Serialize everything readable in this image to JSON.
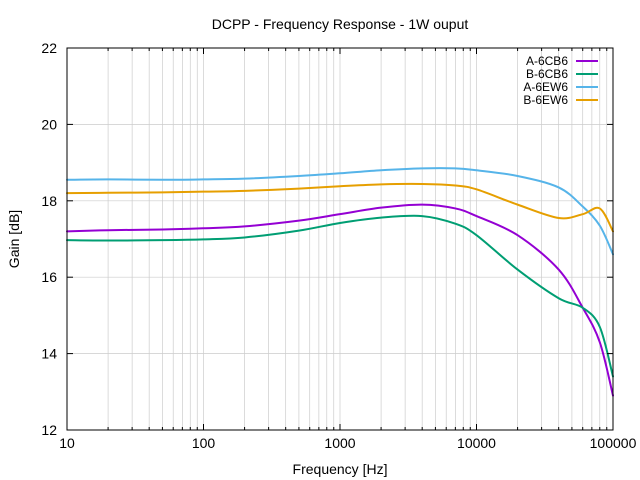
{
  "chart_data": {
    "type": "line",
    "title": "DCPP - Frequency Response - 1W ouput",
    "xlabel": "Frequency [Hz]",
    "ylabel": "Gain [dB]",
    "x_scale": "log",
    "xlim": [
      10,
      100000
    ],
    "ylim": [
      12,
      22
    ],
    "x_ticks": [
      {
        "value": 10,
        "label": "10"
      },
      {
        "value": 100,
        "label": "100"
      },
      {
        "value": 1000,
        "label": "1000"
      },
      {
        "value": 10000,
        "label": "10000"
      },
      {
        "value": 100000,
        "label": "100000"
      }
    ],
    "y_ticks": [
      {
        "value": 12,
        "label": "12"
      },
      {
        "value": 14,
        "label": "14"
      },
      {
        "value": 16,
        "label": "16"
      },
      {
        "value": 18,
        "label": "18"
      },
      {
        "value": 20,
        "label": "20"
      },
      {
        "value": 22,
        "label": "22"
      }
    ],
    "grid": true,
    "legend_position": "top-right",
    "series": [
      {
        "name": "A-6CB6",
        "color": "#9400d3",
        "x": [
          10,
          20,
          50,
          100,
          200,
          500,
          1000,
          2000,
          4000,
          7000,
          10000,
          20000,
          40000,
          60000,
          80000,
          100000
        ],
        "y": [
          17.2,
          17.23,
          17.25,
          17.28,
          17.33,
          17.48,
          17.65,
          17.82,
          17.9,
          17.8,
          17.6,
          17.1,
          16.2,
          15.2,
          14.3,
          12.9
        ]
      },
      {
        "name": "B-6CB6",
        "color": "#009e73",
        "x": [
          10,
          20,
          50,
          100,
          200,
          500,
          1000,
          2000,
          4000,
          7000,
          10000,
          20000,
          40000,
          60000,
          80000,
          100000
        ],
        "y": [
          16.97,
          16.96,
          16.97,
          16.99,
          17.04,
          17.22,
          17.42,
          17.56,
          17.6,
          17.4,
          17.1,
          16.2,
          15.45,
          15.2,
          14.7,
          13.4
        ]
      },
      {
        "name": "A-6EW6",
        "color": "#56b4e9",
        "x": [
          10,
          20,
          50,
          100,
          200,
          500,
          1000,
          2000,
          4000,
          7000,
          10000,
          20000,
          40000,
          60000,
          80000,
          100000
        ],
        "y": [
          18.55,
          18.56,
          18.55,
          18.56,
          18.58,
          18.65,
          18.72,
          18.8,
          18.85,
          18.85,
          18.8,
          18.65,
          18.35,
          17.85,
          17.35,
          16.6
        ]
      },
      {
        "name": "B-6EW6",
        "color": "#e69f00",
        "x": [
          10,
          20,
          50,
          100,
          200,
          500,
          1000,
          2000,
          4000,
          7000,
          10000,
          20000,
          40000,
          60000,
          80000,
          100000
        ],
        "y": [
          18.2,
          18.21,
          18.22,
          18.24,
          18.26,
          18.32,
          18.38,
          18.43,
          18.44,
          18.4,
          18.3,
          17.9,
          17.55,
          17.65,
          17.8,
          17.2
        ]
      }
    ]
  }
}
